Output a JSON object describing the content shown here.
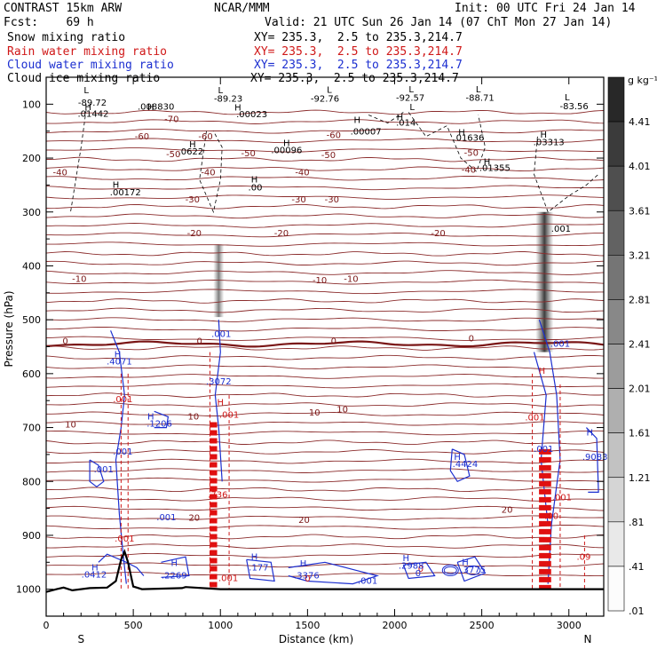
{
  "header": {
    "model": "CONTRAST 15km ARW",
    "org": "NCAR/MMM",
    "init": "Init: 00 UTC Fri 24 Jan 14",
    "fcst": "Fcst:    69 h",
    "valid": "Valid: 21 UTC Sun 26 Jan 14 (07 ChT Mon 27 Jan 14)",
    "xy": "XY= 235.3,  2.5 to 235.3,214.7",
    "legend": [
      {
        "label": "Snow mixing ratio",
        "color": "#000000"
      },
      {
        "label": "Rain water mixing ratio",
        "color": "#d01818"
      },
      {
        "label": "Cloud water mixing ratio",
        "color": "#1c2fd0"
      },
      {
        "label": "Cloud ice mixing ratio",
        "color": "#000000"
      }
    ]
  },
  "chart_data": {
    "type": "cross-section",
    "xlabel": "Distance (km)",
    "ylabel": "Pressure (hPa)",
    "xlim": [
      0,
      3200
    ],
    "ylim": [
      1050,
      50
    ],
    "xticks": [
      "0",
      "500",
      "1000",
      "1500",
      "2000",
      "2500",
      "3000"
    ],
    "yticks": [
      "100",
      "200",
      "300",
      "400",
      "500",
      "600",
      "700",
      "800",
      "900",
      "1000"
    ],
    "end_labels": {
      "left": "S",
      "right": "N"
    },
    "colorbar": {
      "unit": "g kg⁻¹",
      "levels": [
        "4.41",
        "4.01",
        "3.61",
        "3.21",
        "2.81",
        "2.41",
        "2.01",
        "1.61",
        "1.21",
        ".81",
        ".41",
        ".01"
      ]
    },
    "isotherms": [
      {
        "label": "-70",
        "p": 135
      },
      {
        "label": "-60",
        "p": 165
      },
      {
        "label": "-50",
        "p": 198
      },
      {
        "label": "-40",
        "p": 232
      },
      {
        "label": "-30",
        "p": 282
      },
      {
        "label": "-20",
        "p": 345
      },
      {
        "label": "-10",
        "p": 430
      },
      {
        "label": "0",
        "p": 545
      },
      {
        "label": "10",
        "p": 692
      },
      {
        "label": "20",
        "p": 872
      }
    ],
    "temperature_labels": [
      {
        "text": "-70",
        "x": 720,
        "p": 133
      },
      {
        "text": "-60",
        "x": 550,
        "p": 165
      },
      {
        "text": "-60",
        "x": 915,
        "p": 165
      },
      {
        "text": "-60",
        "x": 1650,
        "p": 163
      },
      {
        "text": "-50",
        "x": 730,
        "p": 198
      },
      {
        "text": "-50",
        "x": 1160,
        "p": 197
      },
      {
        "text": "-50",
        "x": 1620,
        "p": 200
      },
      {
        "text": "-50",
        "x": 2440,
        "p": 196
      },
      {
        "text": "-40",
        "x": 80,
        "p": 232
      },
      {
        "text": "-40",
        "x": 930,
        "p": 232
      },
      {
        "text": "-40",
        "x": 1470,
        "p": 232
      },
      {
        "text": "-40",
        "x": 2425,
        "p": 227
      },
      {
        "text": "-30",
        "x": 840,
        "p": 282
      },
      {
        "text": "-30",
        "x": 1450,
        "p": 282
      },
      {
        "text": "-30",
        "x": 1640,
        "p": 282
      },
      {
        "text": "-20",
        "x": 850,
        "p": 345
      },
      {
        "text": "-20",
        "x": 1350,
        "p": 345
      },
      {
        "text": "-20",
        "x": 2250,
        "p": 345
      },
      {
        "text": "-10",
        "x": 190,
        "p": 430
      },
      {
        "text": "-10",
        "x": 1570,
        "p": 432
      },
      {
        "text": "-10",
        "x": 1750,
        "p": 430
      },
      {
        "text": "0",
        "x": 110,
        "p": 545
      },
      {
        "text": "0",
        "x": 880,
        "p": 545
      },
      {
        "text": "0",
        "x": 1650,
        "p": 545
      },
      {
        "text": "0",
        "x": 2440,
        "p": 540
      },
      {
        "text": "10",
        "x": 140,
        "p": 700
      },
      {
        "text": "10",
        "x": 845,
        "p": 685
      },
      {
        "text": "10",
        "x": 1540,
        "p": 678
      },
      {
        "text": "10",
        "x": 1700,
        "p": 672
      },
      {
        "text": "20",
        "x": 850,
        "p": 873
      },
      {
        "text": "20",
        "x": 1480,
        "p": 877
      },
      {
        "text": "20",
        "x": 2645,
        "p": 858
      }
    ],
    "annotations_black": [
      {
        "text": "L",
        "x": 230,
        "p": 80
      },
      {
        "text": "-89.72",
        "x": 265,
        "p": 103
      },
      {
        "text": "L",
        "x": 1000,
        "p": 80
      },
      {
        "text": "-89.23",
        "x": 1045,
        "p": 95
      },
      {
        "text": "L",
        "x": 1625,
        "p": 79
      },
      {
        "text": "-92.76",
        "x": 1600,
        "p": 95
      },
      {
        "text": "L",
        "x": 2095,
        "p": 78
      },
      {
        "text": "-92.57",
        "x": 2090,
        "p": 94
      },
      {
        "text": "L",
        "x": 2480,
        "p": 78
      },
      {
        "text": "-88.71",
        "x": 2490,
        "p": 94
      },
      {
        "text": "L",
        "x": 2990,
        "p": 93
      },
      {
        "text": "-83.56",
        "x": 3030,
        "p": 109
      },
      {
        "text": "L",
        "x": 2100,
        "p": 111
      },
      {
        "text": "H",
        "x": 240,
        "p": 111
      },
      {
        "text": ".01442",
        "x": 270,
        "p": 123
      },
      {
        "text": "H",
        "x": 600,
        "p": 111
      },
      {
        "text": ".008830",
        "x": 630,
        "p": 110
      },
      {
        "text": "H",
        "x": 1100,
        "p": 112
      },
      {
        "text": ".00023",
        "x": 1180,
        "p": 124
      },
      {
        "text": "H",
        "x": 1785,
        "p": 135
      },
      {
        "text": ".00007",
        "x": 1835,
        "p": 156
      },
      {
        "text": "H",
        "x": 2030,
        "p": 130
      },
      {
        "text": ".014",
        "x": 2065,
        "p": 140
      },
      {
        "text": "H",
        "x": 2385,
        "p": 158
      },
      {
        "text": ".01636",
        "x": 2425,
        "p": 168
      },
      {
        "text": "H",
        "x": 2855,
        "p": 162
      },
      {
        "text": ".03313",
        "x": 2885,
        "p": 176
      },
      {
        "text": "H",
        "x": 840,
        "p": 180
      },
      {
        "text": ".0622",
        "x": 830,
        "p": 193
      },
      {
        "text": "H",
        "x": 1380,
        "p": 178
      },
      {
        "text": ".00096",
        "x": 1380,
        "p": 191
      },
      {
        "text": "H",
        "x": 2530,
        "p": 212
      },
      {
        "text": ".01355",
        "x": 2575,
        "p": 224
      },
      {
        "text": "H",
        "x": 400,
        "p": 255
      },
      {
        "text": ".00172",
        "x": 455,
        "p": 269
      },
      {
        "text": "H",
        "x": 1195,
        "p": 245
      },
      {
        "text": ".00",
        "x": 1200,
        "p": 260
      },
      {
        "text": ".001",
        "x": 2955,
        "p": 337
      }
    ],
    "annotations_red": [
      {
        "text": ".001",
        "x": 440,
        "p": 653
      },
      {
        "text": "H",
        "x": 1000,
        "p": 659
      },
      {
        "text": ".001",
        "x": 1050,
        "p": 682
      },
      {
        "text": ".736",
        "x": 985,
        "p": 830
      },
      {
        "text": ".001",
        "x": 450,
        "p": 912
      },
      {
        "text": ".001",
        "x": 1045,
        "p": 985
      },
      {
        "text": "0",
        "x": 1500,
        "p": 986
      },
      {
        "text": "0",
        "x": 2150,
        "p": 968
      },
      {
        "text": ".001",
        "x": 2805,
        "p": 687
      },
      {
        "text": "H",
        "x": 2845,
        "p": 600
      },
      {
        "text": ".001",
        "x": 2960,
        "p": 835
      },
      {
        "text": ".00",
        "x": 2900,
        "p": 870
      },
      {
        "text": ".09",
        "x": 3085,
        "p": 945
      }
    ],
    "annotations_blue": [
      {
        "text": ".001",
        "x": 1005,
        "p": 532
      },
      {
        "text": "H",
        "x": 410,
        "p": 570
      },
      {
        "text": ".4071",
        "x": 420,
        "p": 583
      },
      {
        "text": ".3072",
        "x": 990,
        "p": 620
      },
      {
        "text": "H",
        "x": 600,
        "p": 685
      },
      {
        "text": ".1206",
        "x": 650,
        "p": 698
      },
      {
        "text": ".001",
        "x": 440,
        "p": 750
      },
      {
        "text": ".001",
        "x": 330,
        "p": 783
      },
      {
        "text": ".001",
        "x": 690,
        "p": 872
      },
      {
        "text": "H",
        "x": 280,
        "p": 965
      },
      {
        "text": ".0412",
        "x": 275,
        "p": 978
      },
      {
        "text": "H",
        "x": 735,
        "p": 957
      },
      {
        "text": ".2269",
        "x": 735,
        "p": 980
      },
      {
        "text": "H",
        "x": 1195,
        "p": 945
      },
      {
        "text": ".177",
        "x": 1220,
        "p": 965
      },
      {
        "text": "H",
        "x": 1475,
        "p": 958
      },
      {
        "text": ".3376",
        "x": 1495,
        "p": 980
      },
      {
        "text": ".001",
        "x": 1845,
        "p": 990
      },
      {
        "text": "H",
        "x": 2065,
        "p": 948
      },
      {
        "text": ".2988",
        "x": 2095,
        "p": 962
      },
      {
        "text": "0",
        "x": 2135,
        "p": 976
      },
      {
        "text": "H",
        "x": 2405,
        "p": 955
      },
      {
        "text": ".3775",
        "x": 2450,
        "p": 969
      },
      {
        "text": "H",
        "x": 2360,
        "p": 760
      },
      {
        "text": ".4424",
        "x": 2405,
        "p": 773
      },
      {
        "text": ".001",
        "x": 2950,
        "p": 550
      },
      {
        "text": ".001",
        "x": 2855,
        "p": 745
      },
      {
        "text": "H",
        "x": 3120,
        "p": 715
      },
      {
        "text": ".9083",
        "x": 3150,
        "p": 760
      }
    ],
    "ice_columns": [
      {
        "x": 990,
        "p_top": 360,
        "p_bottom": 495
      },
      {
        "x": 2860,
        "p_top": 300,
        "p_bottom": 560
      }
    ],
    "rain_columns": [
      {
        "x": 960,
        "p_top": 690,
        "p_bottom": 1000
      },
      {
        "x": 2860,
        "p_top": 740,
        "p_bottom": 1000
      }
    ]
  }
}
